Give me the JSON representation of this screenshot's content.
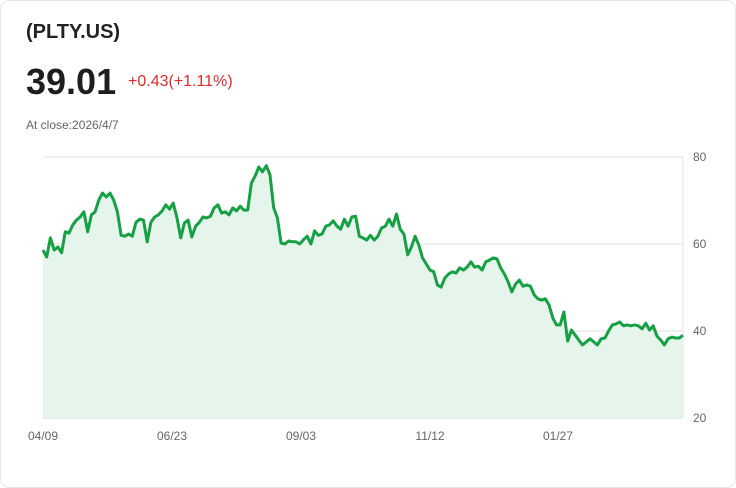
{
  "header": {
    "symbol": "(PLTY.US)",
    "price": "39.01",
    "change": "+0.43(+1.11%)",
    "close_label": "At close:2026/4/7"
  },
  "colors": {
    "line": "#16a044",
    "fill": "#e6f5ec",
    "change": "#e02b2b"
  },
  "chart_data": {
    "type": "area",
    "title": "(PLTY.US)",
    "xlabel": "",
    "ylabel": "",
    "ylim": [
      20,
      80
    ],
    "yticks": [
      "80",
      "60",
      "40",
      "20"
    ],
    "ytick_values": [
      80,
      60,
      40,
      20
    ],
    "xticks": [
      "04/09",
      "06/23",
      "09/03",
      "11/12",
      "01/27"
    ],
    "grid": true,
    "values": [
      58.6,
      57,
      61.4,
      58.6,
      59.3,
      58,
      62.8,
      62.5,
      64.4,
      65.5,
      66.2,
      67.4,
      62.8,
      66.7,
      67.4,
      70.1,
      71.7,
      70.8,
      71.7,
      70.1,
      67.4,
      62,
      61.8,
      62.3,
      61.8,
      65,
      65.7,
      65.5,
      60.5,
      65,
      66.2,
      66.7,
      67.6,
      69,
      68,
      69.4,
      66,
      61.4,
      64.8,
      65.5,
      61.6,
      64.1,
      65,
      66.2,
      66,
      66.4,
      68.3,
      69,
      67.1,
      67.4,
      66.7,
      68.3,
      67.6,
      68.7,
      67.8,
      67.8,
      74,
      75.6,
      77.7,
      76.6,
      78,
      75.9,
      68.3,
      66,
      60.2,
      60,
      60.7,
      60.5,
      60.5,
      60,
      61,
      61.8,
      60,
      63,
      62,
      62.3,
      64.1,
      64.4,
      65.3,
      64.1,
      63.4,
      65.7,
      64.1,
      66.2,
      66.4,
      61.8,
      61.4,
      60.9,
      62,
      60.9,
      61.8,
      63.7,
      64.1,
      65.7,
      64.1,
      66.9,
      63.4,
      62.3,
      57.5,
      59.3,
      61.8,
      59.8,
      56.8,
      55.4,
      54,
      53.6,
      50.6,
      50.1,
      52.2,
      53.1,
      53.6,
      53.3,
      54.5,
      54,
      54.7,
      55.9,
      54.7,
      54.9,
      54,
      55.9,
      56.3,
      56.8,
      56.6,
      54.5,
      53.1,
      51.3,
      49,
      50.8,
      51.7,
      50.3,
      50.6,
      50.3,
      48.3,
      47.4,
      47.1,
      47.4,
      46,
      43,
      41.4,
      41.4,
      44.4,
      37.7,
      40.2,
      39.1,
      37.9,
      36.8,
      37.5,
      38.2,
      37.5,
      36.8,
      38.2,
      38.4,
      40,
      41.4,
      41.6,
      42.1,
      41.2,
      41.4,
      41.2,
      41.4,
      41.2,
      40.5,
      41.8,
      40.2,
      41.2,
      38.8,
      37.9,
      36.8,
      38.2,
      38.6,
      38.4,
      38.4,
      39.01
    ]
  }
}
